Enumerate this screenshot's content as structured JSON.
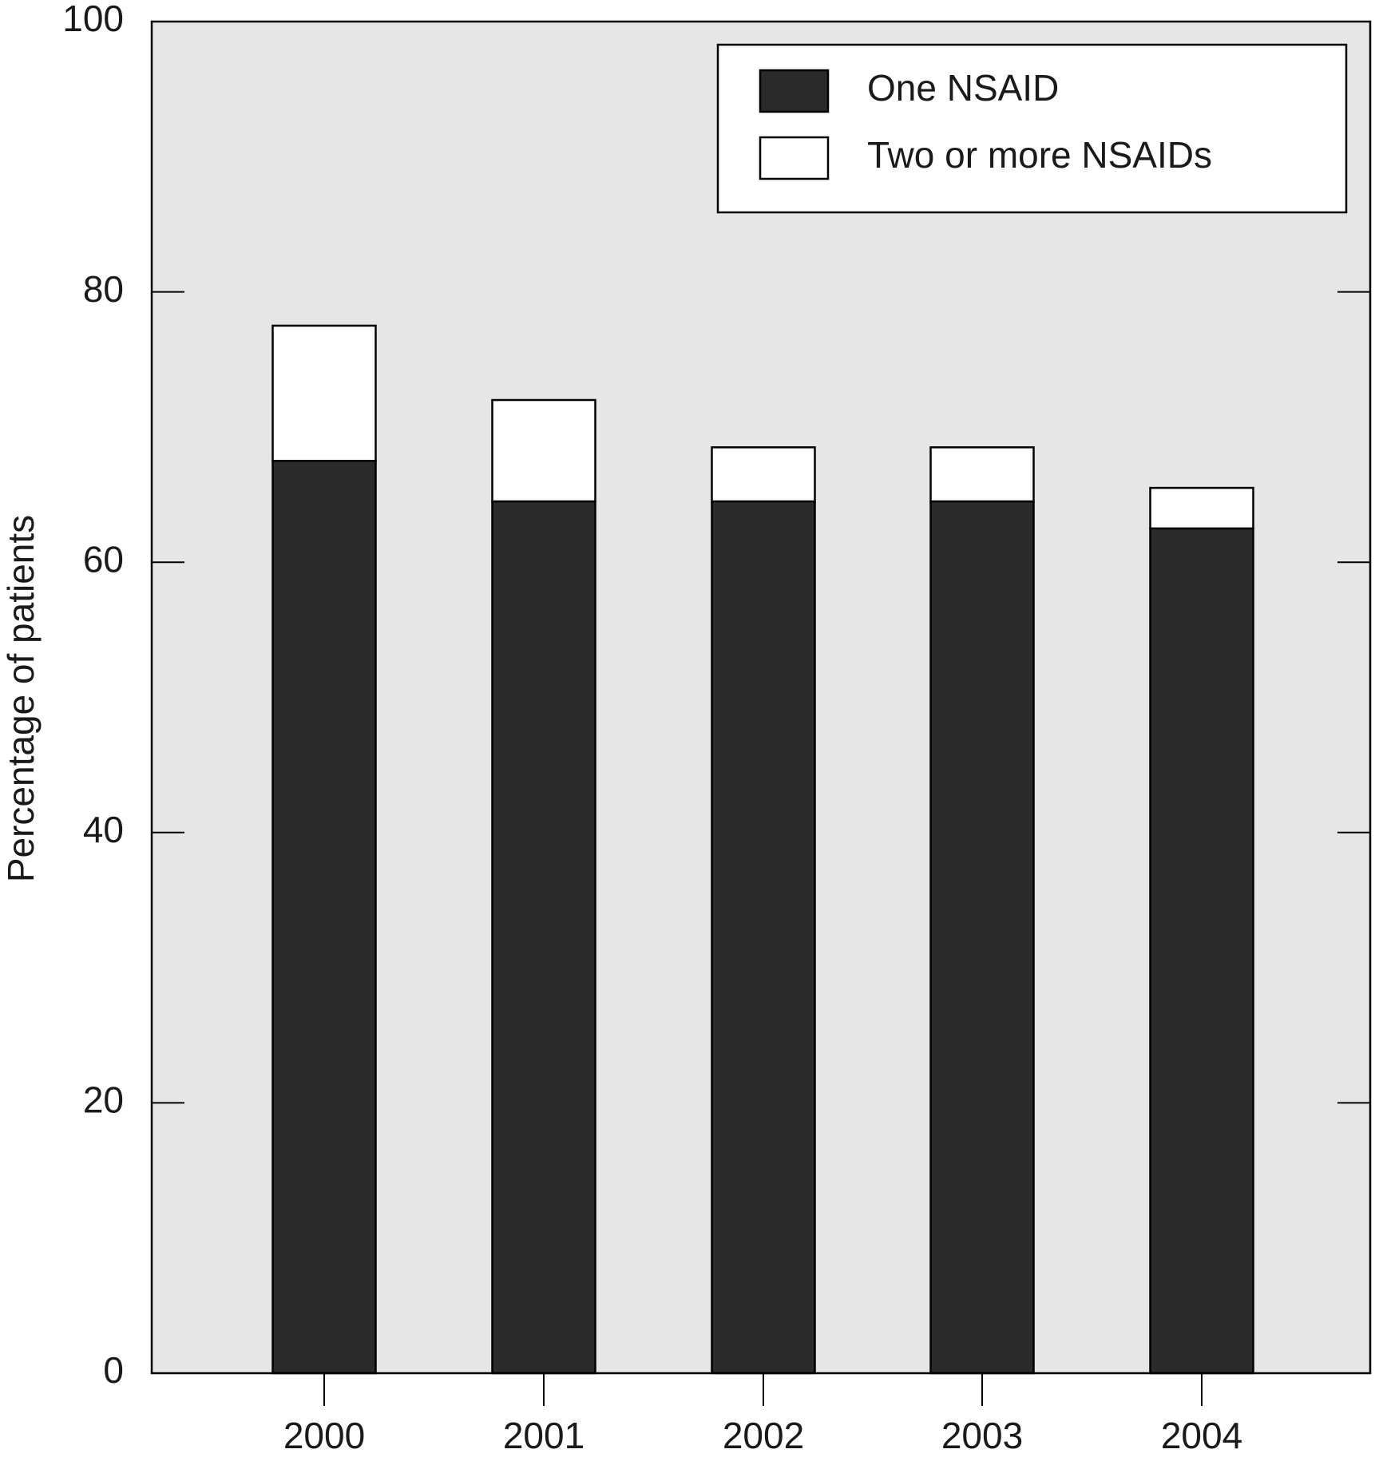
{
  "chart_data": {
    "type": "stacked_bar",
    "y_label": "Percentage of patients",
    "categories": [
      "2000",
      "2001",
      "2002",
      "2003",
      "2004"
    ],
    "series": [
      {
        "name": "One NSAID",
        "color": "#2b2b2b",
        "values": [
          67.5,
          64.5,
          64.5,
          64.5,
          62.5
        ]
      },
      {
        "name": "Two or more NSAIDs",
        "color": "#ffffff",
        "values": [
          10,
          7.5,
          4,
          4,
          3
        ]
      }
    ],
    "ylim": [
      0,
      100
    ],
    "yticks": [
      0,
      20,
      40,
      60,
      80,
      100
    ],
    "background": "#e6e6e6",
    "legend": "top-right"
  }
}
